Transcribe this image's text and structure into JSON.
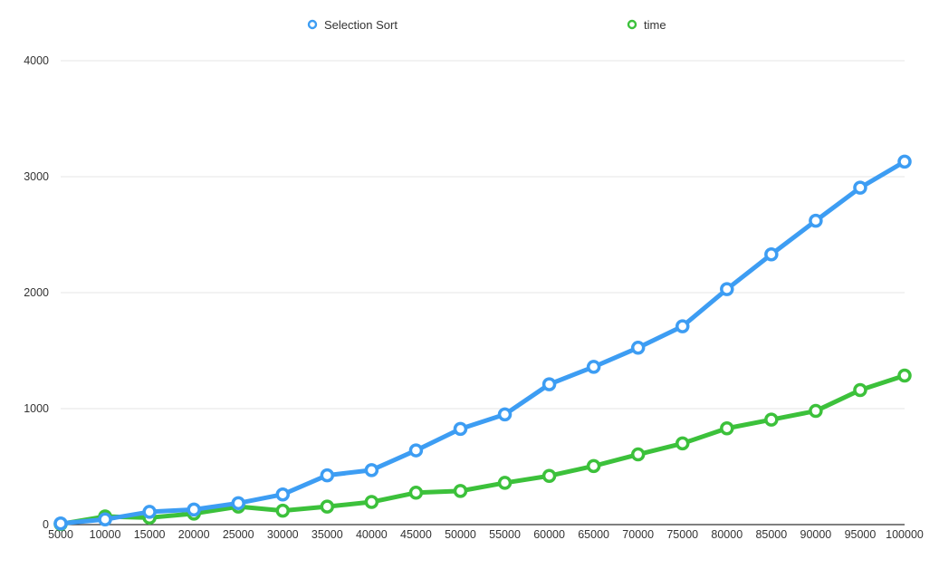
{
  "chart_data": {
    "type": "line",
    "title": "",
    "xlabel": "",
    "ylabel": "",
    "categories": [
      "5000",
      "10000",
      "15000",
      "20000",
      "25000",
      "30000",
      "35000",
      "40000",
      "45000",
      "50000",
      "55000",
      "60000",
      "65000",
      "70000",
      "75000",
      "80000",
      "85000",
      "90000",
      "95000",
      "100000"
    ],
    "ylim": [
      0,
      4000
    ],
    "yticks": [
      "0",
      "1000",
      "2000",
      "3000",
      "4000"
    ],
    "grid": true,
    "legend_position": "top",
    "series": [
      {
        "name": "Selection Sort",
        "color": "#3d9df3",
        "values": [
          10,
          45,
          110,
          130,
          185,
          260,
          425,
          470,
          640,
          825,
          950,
          1210,
          1360,
          1525,
          1710,
          2030,
          2330,
          2620,
          2905,
          3130
        ]
      },
      {
        "name": "time",
        "color": "#3cc13b",
        "values": [
          5,
          70,
          60,
          95,
          155,
          120,
          155,
          195,
          275,
          290,
          360,
          420,
          505,
          605,
          700,
          830,
          905,
          980,
          1160,
          1285
        ]
      }
    ]
  }
}
